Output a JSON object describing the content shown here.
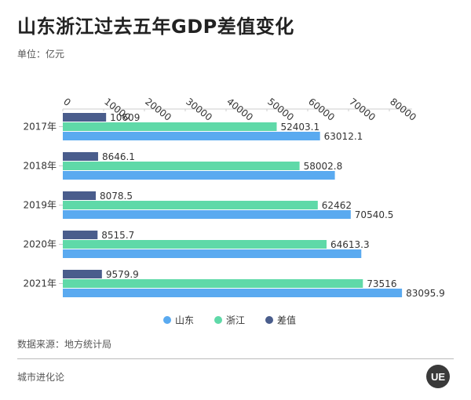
{
  "header": {
    "title": "山东浙江过去五年GDP差值变化",
    "unit": "单位：亿元"
  },
  "chart_data": {
    "type": "bar",
    "orientation": "horizontal",
    "categories": [
      "2017年",
      "2018年",
      "2019年",
      "2020年",
      "2021年"
    ],
    "series": [
      {
        "name": "差值",
        "color": "#4a5d8c",
        "values": [
          10609,
          8646.1,
          8078.5,
          8515.7,
          9579.9
        ],
        "labels": [
          "10609",
          "8646.1",
          "8078.5",
          "8515.7",
          "9579.9"
        ]
      },
      {
        "name": "浙江",
        "color": "#5fd9a8",
        "values": [
          52403.1,
          58002.8,
          62462,
          64613.3,
          73516
        ],
        "labels": [
          "52403.1",
          "58002.8",
          "62462",
          "64613.3",
          "73516"
        ]
      },
      {
        "name": "山东",
        "color": "#5aaaf0",
        "values": [
          63012.1,
          66648.9,
          70540.5,
          73129,
          83095.9
        ],
        "labels": [
          "63012.1",
          "",
          "70540.5",
          "",
          "83095.9"
        ]
      }
    ],
    "legend": [
      {
        "name": "山东",
        "color": "#5aaaf0"
      },
      {
        "name": "浙江",
        "color": "#5fd9a8"
      },
      {
        "name": "差值",
        "color": "#4a5d8c"
      }
    ],
    "xticks": [
      0,
      10000,
      20000,
      30000,
      40000,
      50000,
      60000,
      70000,
      80000
    ],
    "xlim": [
      0,
      84000
    ],
    "legend_position": "bottom",
    "grid": false
  },
  "footer": {
    "source": "数据来源：地方统计局",
    "brand": "城市进化论",
    "logo_text": "UE"
  }
}
